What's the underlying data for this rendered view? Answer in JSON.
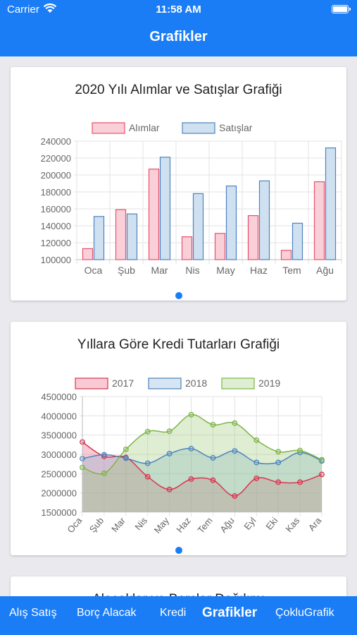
{
  "status": {
    "carrier": "Carrier",
    "time": "11:58 AM"
  },
  "header": {
    "title": "Grafikler"
  },
  "chart_data": [
    {
      "type": "bar",
      "title": "2020 Yılı Alımlar ve Satışlar Grafiği",
      "categories": [
        "Oca",
        "Şub",
        "Mar",
        "Nis",
        "May",
        "Haz",
        "Tem",
        "Ağu"
      ],
      "series": [
        {
          "name": "Alımlar",
          "values": [
            113000,
            159000,
            207000,
            127000,
            131000,
            152000,
            111000,
            192000
          ],
          "color": "#e8506e",
          "fill": "#f9cfd8"
        },
        {
          "name": "Satışlar",
          "values": [
            151000,
            154000,
            221000,
            178000,
            187000,
            193000,
            143000,
            232000
          ],
          "color": "#4d84bf",
          "fill": "#cfe0f0"
        }
      ],
      "ylim": [
        100000,
        240000
      ],
      "yticks": [
        "240000",
        "220000",
        "200000",
        "180000",
        "160000",
        "140000",
        "120000",
        "100000"
      ],
      "legend": "top",
      "grid": true
    },
    {
      "type": "area",
      "title": "Yıllara Göre Kredi Tutarları Grafiği",
      "categories": [
        "Oca",
        "Şub",
        "Mar",
        "Nis",
        "May",
        "Haz",
        "Tem",
        "Ağu",
        "Eyl",
        "Eki",
        "Kas",
        "Ara"
      ],
      "series": [
        {
          "name": "2017",
          "values": [
            3320000,
            2950000,
            2920000,
            2420000,
            2090000,
            2360000,
            2330000,
            1920000,
            2380000,
            2280000,
            2280000,
            2480000
          ],
          "color": "#d9344f",
          "fill": "rgba(232,80,110,0.3)"
        },
        {
          "name": "2018",
          "values": [
            2890000,
            2990000,
            2900000,
            2770000,
            3020000,
            3150000,
            2910000,
            3090000,
            2790000,
            2790000,
            3050000,
            2830000
          ],
          "color": "#4d84bf",
          "fill": "rgba(120,170,210,0.3)"
        },
        {
          "name": "2019",
          "values": [
            2660000,
            2510000,
            3130000,
            3590000,
            3600000,
            4030000,
            3770000,
            3810000,
            3370000,
            3070000,
            3100000,
            2860000
          ],
          "color": "#7fb347",
          "fill": "rgba(150,200,110,0.3)"
        }
      ],
      "ylim": [
        1500000,
        4500000
      ],
      "yticks": [
        "4500000",
        "4000000",
        "3500000",
        "3000000",
        "2500000",
        "2000000",
        "1500000"
      ],
      "legend": "top",
      "grid": true
    }
  ],
  "card3": {
    "title": "Alacaklar ve Borçlar Dağılımı"
  },
  "tabs": [
    {
      "label": "Alış Satış"
    },
    {
      "label": "Borç Alacak"
    },
    {
      "label": "Kredi"
    },
    {
      "label": "Grafikler"
    },
    {
      "label": "ÇokluGrafik"
    }
  ],
  "colors": {
    "accent": "#1a7df6"
  }
}
